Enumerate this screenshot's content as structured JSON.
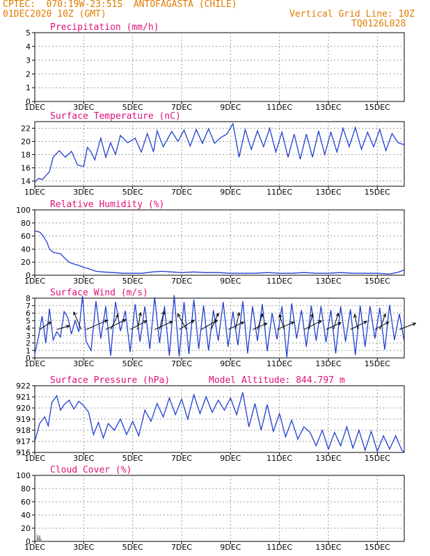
{
  "header": {
    "line1": "CPTEC:  070:19W-23:51S  ANTOFAGASTA (CHILE)",
    "line2": "01DEC2020 10Z (GMT)",
    "grid_note": "Vertical Grid Line: 10Z",
    "code": "TQ0126L028"
  },
  "colors": {
    "header": "#e07b00",
    "title": "#e0107a",
    "line": "#1f3fd0",
    "bars": "#9a9a9a",
    "arrows": "#000000"
  },
  "x_ticks": [
    "1DEC",
    "3DEC",
    "5DEC",
    "7DEC",
    "9DEC",
    "11DEC",
    "13DEC",
    "15DEC"
  ],
  "chart_data": [
    {
      "type": "bar",
      "title": "Precipitation (mm/h)",
      "ylim": [
        0,
        5
      ],
      "yticks": [
        0,
        1,
        2,
        3,
        4,
        5
      ],
      "xlim": [
        0,
        15.1
      ],
      "x_ticks_days": [
        0,
        2,
        4,
        6,
        8,
        10,
        12,
        14
      ],
      "x": [],
      "values": []
    },
    {
      "type": "line",
      "title": "Surface Temperature (nC)",
      "ylim": [
        13.2,
        23
      ],
      "yticks": [
        14,
        16,
        18,
        20,
        22
      ],
      "xlim": [
        0,
        15.1
      ],
      "x": [
        0,
        0.15,
        0.3,
        0.45,
        0.6,
        0.75,
        0.9,
        1.0,
        1.25,
        1.5,
        1.75,
        2.0,
        2.15,
        2.3,
        2.45,
        2.7,
        2.9,
        3.1,
        3.3,
        3.5,
        3.8,
        4.1,
        4.35,
        4.6,
        4.85,
        5.0,
        5.25,
        5.6,
        5.85,
        6.1,
        6.35,
        6.6,
        6.85,
        7.1,
        7.35,
        7.6,
        7.85,
        8.1,
        8.35,
        8.6,
        8.85,
        9.1,
        9.35,
        9.6,
        9.85,
        10.1,
        10.35,
        10.6,
        10.85,
        11.1,
        11.35,
        11.6,
        11.85,
        12.1,
        12.35,
        12.6,
        12.85,
        13.1,
        13.35,
        13.6,
        13.85,
        14.1,
        14.35,
        14.6,
        14.85,
        15.1
      ],
      "values": [
        13.8,
        14.4,
        14.2,
        14.8,
        15.4,
        17.6,
        18.2,
        18.6,
        17.6,
        18.5,
        16.4,
        16.2,
        19.1,
        18.4,
        17.2,
        20.5,
        17.6,
        19.8,
        18.0,
        20.9,
        19.8,
        20.5,
        18.4,
        21.2,
        18.4,
        21.6,
        19.2,
        21.5,
        20.0,
        21.7,
        19.3,
        21.8,
        19.7,
        21.9,
        19.7,
        20.6,
        21.1,
        22.7,
        17.6,
        21.8,
        18.8,
        21.6,
        19.2,
        22.0,
        18.4,
        21.4,
        17.6,
        21.1,
        17.3,
        21.1,
        17.6,
        21.6,
        18.0,
        21.4,
        18.4,
        22.0,
        19.2,
        22.1,
        18.8,
        21.4,
        19.2,
        21.8,
        18.6,
        21.2,
        19.8,
        19.5
      ]
    },
    {
      "type": "line",
      "title": "Relative Humidity (%)",
      "ylim": [
        0,
        100
      ],
      "yticks": [
        0,
        20,
        40,
        60,
        80,
        100
      ],
      "xlim": [
        0,
        15.1
      ],
      "x": [
        0,
        0.2,
        0.35,
        0.5,
        0.6,
        0.75,
        0.9,
        1.05,
        1.2,
        1.4,
        1.6,
        1.8,
        2.0,
        2.2,
        2.5,
        2.8,
        3.2,
        3.6,
        4.0,
        4.4,
        4.8,
        5.2,
        5.6,
        6.0,
        6.5,
        7.0,
        7.5,
        8.0,
        8.5,
        9.0,
        9.5,
        10.0,
        10.5,
        11.0,
        11.5,
        12.0,
        12.5,
        13.0,
        13.5,
        14.0,
        14.5,
        14.8,
        15.1
      ],
      "values": [
        68,
        66,
        60,
        50,
        40,
        35,
        34,
        33,
        27,
        20,
        17,
        15,
        12,
        10,
        6,
        5,
        4,
        3,
        3,
        3,
        5,
        6,
        5,
        4,
        5,
        4,
        4,
        3,
        3,
        3,
        4,
        3,
        3,
        4,
        3,
        3,
        4,
        3,
        3,
        3,
        2,
        4,
        8
      ]
    },
    {
      "type": "line",
      "title": "Surface Wind (m/s)",
      "ylim": [
        0,
        8
      ],
      "yticks": [
        0,
        1,
        2,
        3,
        4,
        5,
        6,
        7,
        8
      ],
      "xlim": [
        0,
        15.1
      ],
      "x": [
        0,
        0.15,
        0.3,
        0.45,
        0.6,
        0.75,
        0.9,
        1.05,
        1.2,
        1.35,
        1.5,
        1.65,
        1.8,
        1.95,
        2.1,
        2.3,
        2.5,
        2.7,
        2.9,
        3.1,
        3.3,
        3.5,
        3.7,
        3.9,
        4.1,
        4.3,
        4.5,
        4.7,
        4.9,
        5.1,
        5.3,
        5.5,
        5.7,
        5.9,
        6.1,
        6.3,
        6.5,
        6.7,
        6.9,
        7.1,
        7.3,
        7.5,
        7.7,
        7.9,
        8.1,
        8.3,
        8.5,
        8.7,
        8.9,
        9.1,
        9.3,
        9.5,
        9.7,
        9.9,
        10.1,
        10.3,
        10.5,
        10.7,
        10.9,
        11.1,
        11.3,
        11.5,
        11.7,
        11.9,
        12.1,
        12.3,
        12.5,
        12.7,
        12.9,
        13.1,
        13.3,
        13.5,
        13.7,
        13.9,
        14.1,
        14.3,
        14.5,
        14.7,
        14.9,
        15.1
      ],
      "values": [
        0.5,
        2.8,
        5.6,
        2.0,
        6.6,
        2.4,
        3.5,
        2.8,
        6.2,
        5.4,
        3.2,
        5.0,
        3.5,
        8.3,
        2.2,
        1.0,
        7.6,
        2.6,
        6.9,
        0.3,
        7.5,
        3.6,
        6.3,
        0.8,
        7.2,
        2.2,
        6.9,
        1.2,
        8.1,
        2.0,
        6.9,
        0.3,
        8.4,
        0.2,
        7.5,
        0.5,
        7.8,
        1.2,
        7.0,
        1.0,
        6.4,
        2.3,
        7.5,
        1.5,
        6.2,
        1.7,
        7.6,
        0.6,
        6.9,
        2.3,
        7.2,
        0.9,
        6.0,
        2.5,
        6.9,
        0.1,
        7.3,
        2.6,
        6.4,
        1.5,
        7.0,
        2.3,
        6.9,
        2.1,
        6.4,
        0.6,
        6.9,
        2.2,
        6.5,
        0.4,
        7.0,
        1.5,
        6.9,
        2.6,
        6.7,
        1.1,
        7.1,
        2.4,
        5.9,
        2.2
      ],
      "arrows": [
        {
          "day": 0.2,
          "u": 1.8,
          "v": 1.2
        },
        {
          "day": 0.9,
          "u": 2.0,
          "v": 0.6
        },
        {
          "day": 1.9,
          "u": -1.2,
          "v": 2.8
        },
        {
          "day": 2.1,
          "u": 3.4,
          "v": 1.5
        },
        {
          "day": 2.9,
          "u": 3.2,
          "v": 1.6
        },
        {
          "day": 3.1,
          "u": 1.2,
          "v": 2.4
        },
        {
          "day": 3.9,
          "u": 2.6,
          "v": 1.4
        },
        {
          "day": 4.2,
          "u": 0.5,
          "v": 2.7
        },
        {
          "day": 4.9,
          "u": 2.8,
          "v": 1.3
        },
        {
          "day": 5.1,
          "u": 0.7,
          "v": 2.9
        },
        {
          "day": 5.9,
          "u": 2.4,
          "v": 1.5
        },
        {
          "day": 6.2,
          "u": -1.4,
          "v": 2.5
        },
        {
          "day": 6.8,
          "u": 2.6,
          "v": 1.5
        },
        {
          "day": 7.2,
          "u": 1.2,
          "v": 2.6
        },
        {
          "day": 7.9,
          "u": 2.5,
          "v": 1.2
        },
        {
          "day": 8.2,
          "u": 0.6,
          "v": 2.7
        },
        {
          "day": 8.9,
          "u": 2.3,
          "v": 1.0
        },
        {
          "day": 9.1,
          "u": 0.8,
          "v": 2.5
        },
        {
          "day": 9.9,
          "u": 2.7,
          "v": 1.2
        },
        {
          "day": 10.2,
          "u": -0.8,
          "v": 2.4
        },
        {
          "day": 11.0,
          "u": 2.8,
          "v": 1.4
        },
        {
          "day": 11.2,
          "u": 0.6,
          "v": 2.5
        },
        {
          "day": 11.9,
          "u": 2.4,
          "v": 1.1
        },
        {
          "day": 12.2,
          "u": 0.8,
          "v": 2.6
        },
        {
          "day": 12.9,
          "u": 2.6,
          "v": 1.3
        },
        {
          "day": 13.2,
          "u": -0.5,
          "v": 2.4
        },
        {
          "day": 13.9,
          "u": 2.2,
          "v": 1.2
        },
        {
          "day": 14.1,
          "u": 0.9,
          "v": 2.5
        },
        {
          "day": 14.9,
          "u": 2.6,
          "v": 1.0
        }
      ]
    },
    {
      "type": "line",
      "title": "Surface Pressure (hPa)",
      "annotation": "Model Altitude: 844.797 m",
      "ylim": [
        916,
        922
      ],
      "yticks": [
        916,
        917,
        918,
        919,
        920,
        921,
        922
      ],
      "xlim": [
        0,
        15.1
      ],
      "x": [
        0,
        0.2,
        0.4,
        0.55,
        0.7,
        0.9,
        1.05,
        1.2,
        1.4,
        1.6,
        1.8,
        2.0,
        2.2,
        2.4,
        2.6,
        2.8,
        3.0,
        3.25,
        3.5,
        3.75,
        4.0,
        4.25,
        4.5,
        4.75,
        5.0,
        5.25,
        5.5,
        5.75,
        6.0,
        6.25,
        6.5,
        6.75,
        7.0,
        7.25,
        7.5,
        7.75,
        8.0,
        8.25,
        8.5,
        8.75,
        9.0,
        9.25,
        9.5,
        9.75,
        10.0,
        10.25,
        10.5,
        10.75,
        11.0,
        11.25,
        11.5,
        11.75,
        12.0,
        12.25,
        12.5,
        12.75,
        13.0,
        13.25,
        13.5,
        13.75,
        14.0,
        14.25,
        14.5,
        14.75,
        15.0,
        15.1
      ],
      "values": [
        917.0,
        918.6,
        919.2,
        918.4,
        920.5,
        921.1,
        919.8,
        920.3,
        920.7,
        919.9,
        920.6,
        920.2,
        919.6,
        917.6,
        918.7,
        917.3,
        918.6,
        918.0,
        919.0,
        917.6,
        918.8,
        917.5,
        919.8,
        918.8,
        920.4,
        919.2,
        920.9,
        919.4,
        920.8,
        919.0,
        921.2,
        919.5,
        921.0,
        919.6,
        920.7,
        919.8,
        920.9,
        919.4,
        921.4,
        918.3,
        920.4,
        918.0,
        920.3,
        917.9,
        919.5,
        917.4,
        918.9,
        917.2,
        918.3,
        917.8,
        916.6,
        918.0,
        916.3,
        917.8,
        916.6,
        918.3,
        916.4,
        918.0,
        916.2,
        917.9,
        916.1,
        917.5,
        916.3,
        917.5,
        916.2,
        916.0
      ]
    },
    {
      "type": "bar",
      "title": "Cloud Cover (%)",
      "ylim": [
        0,
        100
      ],
      "yticks": [
        0,
        20,
        40,
        60,
        80,
        100
      ],
      "xlim": [
        0,
        15.1
      ],
      "x": [
        0.05,
        0.1,
        0.15,
        0.2,
        0.25
      ],
      "values": [
        2,
        10,
        6,
        9,
        4
      ]
    }
  ]
}
